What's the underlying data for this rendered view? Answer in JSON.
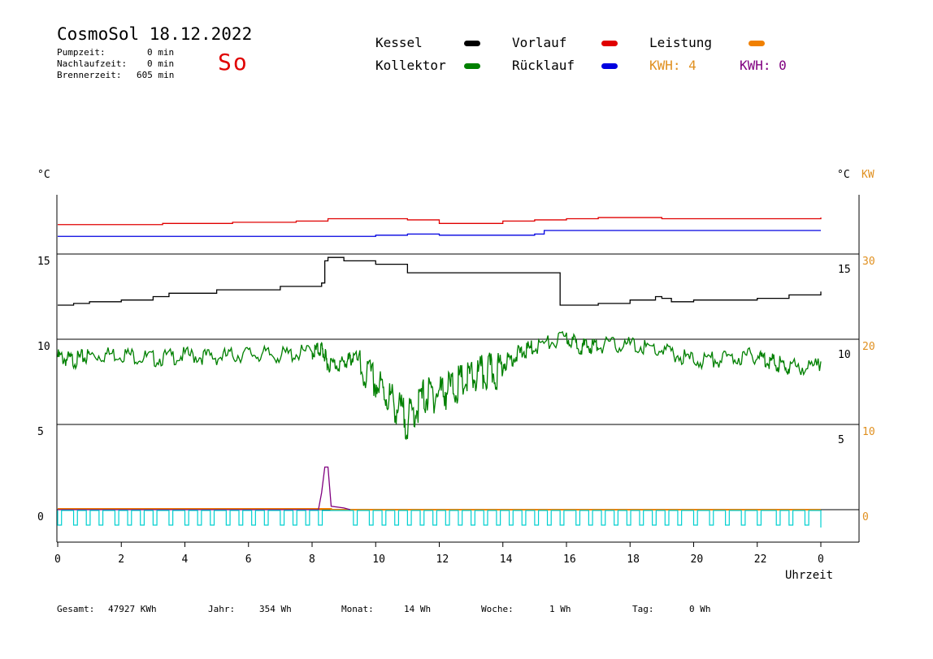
{
  "header": {
    "title": "CosmoSol 18.12.2022",
    "day": "So",
    "stats": [
      {
        "label": "Pumpzeit:",
        "value": "0 min"
      },
      {
        "label": "Nachlaufzeit:",
        "value": "0 min"
      },
      {
        "label": "Brennerzeit:",
        "value": "605 min"
      }
    ]
  },
  "legend": {
    "kessel": {
      "label": "Kessel",
      "color": "#000000"
    },
    "vorlauf": {
      "label": "Vorlauf",
      "color": "#e00000"
    },
    "leistung": {
      "label": "Leistung",
      "color": "#f08000"
    },
    "kollektor": {
      "label": "Kollektor",
      "color": "#008000"
    },
    "ruecklauf": {
      "label": "Rücklauf",
      "color": "#0000e0"
    },
    "kwh1": {
      "label": "KWH: 4",
      "color": "#e09020"
    },
    "kwh2": {
      "label": "KWH: 0",
      "color": "#800080"
    }
  },
  "axis_labels": {
    "left_unit": "°C",
    "right_unit": "°C",
    "right_unit2": "KW",
    "x_label": "Uhrzeit"
  },
  "footer": {
    "gesamt_label": "Gesamt:",
    "gesamt_value": "47927 KWh",
    "jahr_label": "Jahr:",
    "jahr_value": "354 Wh",
    "monat_label": "Monat:",
    "monat_value": "14 Wh",
    "woche_label": "Woche:",
    "woche_value": "1 Wh",
    "tag_label": "Tag:",
    "tag_value": "0 Wh"
  },
  "chart_data": {
    "type": "line",
    "title": "CosmoSol 18.12.2022",
    "xlabel": "Uhrzeit",
    "ylabel": "°C",
    "xlim": [
      0,
      24
    ],
    "x_ticks": [
      "0",
      "2",
      "4",
      "6",
      "8",
      "10",
      "12",
      "14",
      "16",
      "18",
      "20",
      "22",
      "0"
    ],
    "y_ticks_left": [
      "15",
      "10",
      "5",
      "0"
    ],
    "y_ticks_right_c": [
      "15",
      "10",
      "5"
    ],
    "y_ticks_right_kw": [
      "30",
      "20",
      "10",
      "0"
    ],
    "colors": {
      "vorlauf": "#e00000",
      "ruecklauf": "#0000e0",
      "kessel": "#000000",
      "kollektor": "#008000",
      "leistung": "#f08000",
      "kwh2": "#800080",
      "pumpe": "#00d0d0"
    },
    "series": [
      {
        "name": "Vorlauf",
        "x": [
          0,
          3.3,
          5.5,
          7.5,
          8.5,
          10,
          11,
          12,
          13,
          14,
          15,
          16,
          17,
          18,
          19,
          20,
          22,
          24
        ],
        "y": [
          17.5,
          17.6,
          17.7,
          17.8,
          18.0,
          18.0,
          17.9,
          17.6,
          17.6,
          17.8,
          17.9,
          18.0,
          18.1,
          18.1,
          18.0,
          18.0,
          18.0,
          18.1
        ]
      },
      {
        "name": "Rücklauf",
        "x": [
          0,
          4,
          8,
          10,
          11,
          12,
          13,
          14,
          15,
          15.3,
          16,
          17,
          18,
          20,
          22,
          24
        ],
        "y": [
          16.5,
          16.5,
          16.5,
          16.6,
          16.7,
          16.6,
          16.6,
          16.6,
          16.7,
          17.0,
          17.0,
          17.0,
          17.0,
          17.0,
          17.0,
          17.0
        ],
        "_note": "values approximate; right-axis temperature band above 15"
      },
      {
        "name": "Kessel",
        "x": [
          0,
          0.5,
          1,
          2,
          3,
          3.5,
          5,
          6,
          7,
          7,
          8.3,
          8.4,
          8.5,
          9,
          10,
          11,
          12,
          13,
          14,
          15.6,
          15.8,
          16,
          17,
          18,
          18.8,
          19,
          19.3,
          20,
          22,
          23,
          24
        ],
        "y": [
          12.0,
          12.1,
          12.2,
          12.3,
          12.5,
          12.7,
          12.9,
          12.9,
          12.9,
          13.1,
          13.3,
          14.6,
          14.8,
          14.6,
          14.4,
          13.9,
          13.9,
          13.9,
          13.9,
          13.9,
          12.0,
          12.0,
          12.1,
          12.3,
          12.5,
          12.4,
          12.2,
          12.3,
          12.4,
          12.6,
          12.8
        ]
      },
      {
        "name": "Kollektor",
        "x": [
          0,
          0.5,
          1,
          2,
          3,
          4,
          5,
          6,
          7,
          8,
          8.3,
          8.5,
          9,
          9.3,
          10,
          10.5,
          11,
          11.5,
          12,
          12.5,
          13,
          13.5,
          14,
          14.5,
          15,
          16,
          16.5,
          17,
          18,
          19,
          20,
          21,
          22,
          22.5,
          23,
          24
        ],
        "y": [
          9.2,
          9.0,
          9.3,
          9.4,
          9.1,
          9.3,
          9.2,
          9.4,
          9.3,
          9.5,
          9.7,
          8.8,
          8.8,
          9.2,
          8.0,
          7.0,
          5.8,
          7.2,
          7.5,
          7.8,
          8.3,
          8.6,
          8.8,
          9.4,
          9.8,
          10.3,
          9.8,
          9.9,
          9.9,
          9.6,
          9.0,
          9.1,
          9.3,
          8.9,
          8.6,
          8.7
        ]
      },
      {
        "name": "Leistung",
        "x": [
          0,
          2,
          4,
          6,
          8,
          8.3,
          8.6,
          9,
          9.2,
          24
        ],
        "y": [
          0.1,
          0.1,
          0.1,
          0.1,
          0.1,
          0.1,
          0.0,
          0.0,
          0.0,
          0.0
        ]
      },
      {
        "name": "KWH: 0",
        "x": [
          0,
          8.2,
          8.3,
          8.4,
          8.5,
          8.6,
          9,
          9.2
        ],
        "y": [
          0,
          0,
          1.0,
          2.5,
          2.5,
          0.2,
          0.1,
          0.0
        ]
      }
    ]
  }
}
